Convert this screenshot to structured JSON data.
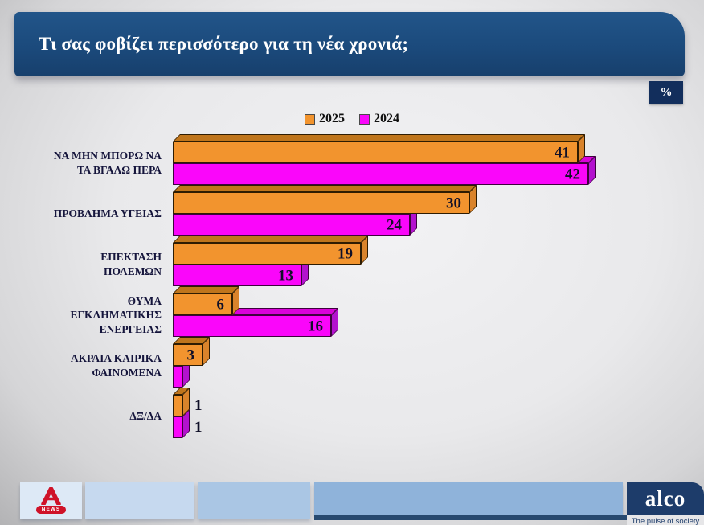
{
  "header": {
    "title": "Τι σας φοβίζει περισσότερο για τη νέα χρονιά;",
    "percent_badge": "%"
  },
  "legend": [
    {
      "label": "2025",
      "color": "#F2942E"
    },
    {
      "label": "2024",
      "color": "#FA06FA"
    }
  ],
  "chart_data": {
    "type": "bar",
    "orientation": "horizontal",
    "value_unit": "percent",
    "title": "Τι σας φοβίζει περισσότερο για τη νέα χρονιά;",
    "xlim": [
      0,
      45
    ],
    "grid": false,
    "legend_position": "top-center",
    "categories": [
      [
        "ΝΑ ΜΗΝ ΜΠΟΡΩ ΝΑ",
        "ΤΑ ΒΓΑΛΩ ΠΕΡΑ"
      ],
      [
        "ΠΡΟΒΛΗΜΑ ΥΓΕΙΑΣ"
      ],
      [
        "ΕΠΕΚΤΑΣΗ",
        "ΠΟΛΕΜΩΝ"
      ],
      [
        "ΘΥΜΑ",
        "ΕΓΚΛΗΜΑΤΙΚΗΣ",
        "ΕΝΕΡΓΕΙΑΣ"
      ],
      [
        "ΑΚΡΑΙΑ ΚΑΙΡΙΚΑ",
        "ΦΑΙΝΟΜΕΝΑ"
      ],
      [
        "ΔΞ/ΔΑ"
      ]
    ],
    "series": [
      {
        "name": "2025",
        "values": [
          41,
          30,
          19,
          6,
          3,
          1
        ],
        "value_labels": [
          "41",
          "30",
          "19",
          "6",
          "3",
          "1"
        ],
        "colors": {
          "face": "#F2942E",
          "top": "#BF751C",
          "side": "#D9832B",
          "outline": "#2E1C02"
        }
      },
      {
        "name": "2024",
        "values": [
          42,
          24,
          13,
          16,
          1,
          1
        ],
        "value_labels": [
          "42",
          "24",
          "13",
          "16",
          "",
          "1"
        ],
        "colors": {
          "face": "#FA06FA",
          "top": "#D902D9",
          "side": "#B312CE",
          "outline": "#3D023D"
        }
      }
    ]
  },
  "footer": {
    "alpha_news_label": "NEWS",
    "alco_label": "alco",
    "alco_tagline": "The pulse of society"
  }
}
